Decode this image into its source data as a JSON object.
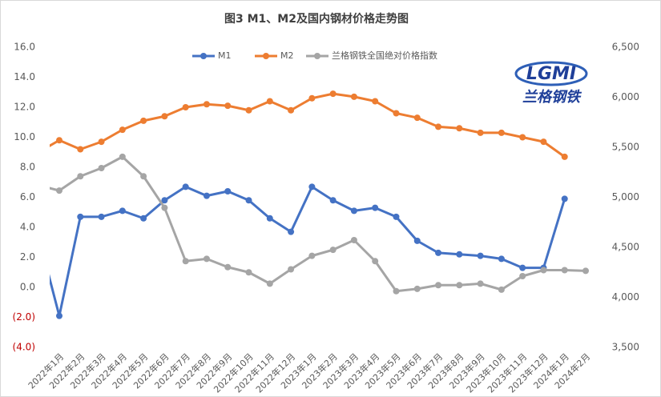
{
  "chart_data": {
    "type": "line",
    "title": "图3 M1、M2及国内钢材价格走势图",
    "logo": {
      "text": "LGMI",
      "subtext": "兰格钢铁"
    },
    "categories": [
      null,
      "2022年1月",
      "2022年2月",
      "2022年3月",
      "2022年4月",
      "2022年5月",
      "2022年6月",
      "2022年7月",
      "2022年8月",
      "2022年9月",
      "2022年10月",
      "2022年11月",
      "2022年12月",
      "2023年1月",
      "2023年2月",
      "2023年3月",
      "2023年4月",
      "2023年5月",
      "2023年6月",
      "2023年7月",
      "2023年8月",
      "2023年9月",
      "2023年10月",
      "2023年11月",
      "2023年12月",
      "2024年1月",
      "2024年2月"
    ],
    "series": [
      {
        "name": "M1",
        "color": "#4472c4",
        "values": [
          3.5,
          -1.9,
          4.7,
          4.7,
          5.1,
          4.6,
          5.8,
          6.7,
          6.1,
          6.4,
          5.8,
          4.6,
          3.7,
          6.7,
          5.8,
          5.1,
          5.3,
          4.7,
          3.1,
          2.3,
          2.2,
          2.1,
          1.9,
          1.3,
          1.3,
          5.9,
          null
        ]
      },
      {
        "name": "M2",
        "color": "#ed7d31",
        "values": [
          9.0,
          9.8,
          9.2,
          9.7,
          10.5,
          11.1,
          11.4,
          12.0,
          12.2,
          12.1,
          11.8,
          12.4,
          11.8,
          12.6,
          12.9,
          12.7,
          12.4,
          11.6,
          11.3,
          10.7,
          10.6,
          10.3,
          10.3,
          10.0,
          9.7,
          8.7,
          null
        ]
      },
      {
        "name": "兰格钢铁全国绝对价格指数",
        "color": "#a5a5a5",
        "axis": "y2",
        "values": [
          5120,
          5067,
          5210,
          5292,
          5405,
          5210,
          4895,
          4362,
          4385,
          4302,
          4250,
          4137,
          4280,
          4415,
          4475,
          4572,
          4362,
          4062,
          4085,
          4122,
          4122,
          4137,
          4077,
          4212,
          4272,
          4272,
          4265
        ]
      }
    ],
    "ylim": [
      -4,
      16
    ],
    "yticks": [
      {
        "value": 16,
        "label": "16.0",
        "color": "#595959"
      },
      {
        "value": 14,
        "label": "14.0",
        "color": "#595959"
      },
      {
        "value": 12,
        "label": "12.0",
        "color": "#595959"
      },
      {
        "value": 10,
        "label": "10.0",
        "color": "#595959"
      },
      {
        "value": 8,
        "label": "8.0",
        "color": "#595959"
      },
      {
        "value": 6,
        "label": "6.0",
        "color": "#595959"
      },
      {
        "value": 4,
        "label": "4.0",
        "color": "#595959"
      },
      {
        "value": 2,
        "label": "2.0",
        "color": "#595959"
      },
      {
        "value": 0,
        "label": "0.0",
        "color": "#595959"
      },
      {
        "value": -2,
        "label": "(2.0)",
        "color": "#c00000"
      },
      {
        "value": -4,
        "label": "(4.0)",
        "color": "#c00000"
      }
    ],
    "y2lim": [
      3500,
      6500
    ],
    "y2ticks": [
      {
        "value": 6500,
        "label": "6,500"
      },
      {
        "value": 6000,
        "label": "6,000"
      },
      {
        "value": 5500,
        "label": "5,500"
      },
      {
        "value": 5000,
        "label": "5,000"
      },
      {
        "value": 4500,
        "label": "4,500"
      },
      {
        "value": 4000,
        "label": "4,000"
      },
      {
        "value": 3500,
        "label": "3,500"
      }
    ],
    "grid": false,
    "legend": "top"
  }
}
